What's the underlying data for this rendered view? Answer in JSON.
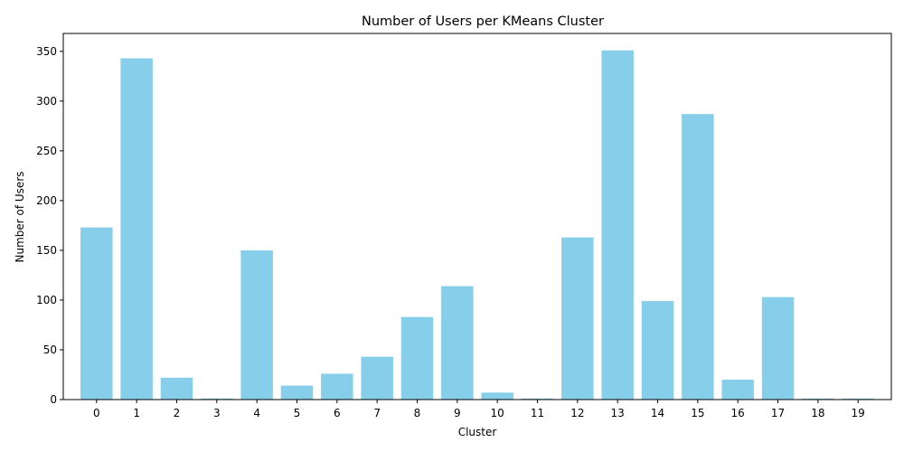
{
  "chart_data": {
    "type": "bar",
    "title": "Number of Users per KMeans Cluster",
    "xlabel": "Cluster",
    "ylabel": "Number of Users",
    "categories": [
      "0",
      "1",
      "2",
      "3",
      "4",
      "5",
      "6",
      "7",
      "8",
      "9",
      "10",
      "11",
      "12",
      "13",
      "14",
      "15",
      "16",
      "17",
      "18",
      "19"
    ],
    "values": [
      173,
      343,
      22,
      1,
      150,
      14,
      26,
      43,
      83,
      114,
      7,
      1,
      163,
      351,
      99,
      287,
      20,
      103,
      1,
      1
    ],
    "ylim": [
      0,
      368
    ],
    "yticks": [
      0,
      50,
      100,
      150,
      200,
      250,
      300,
      350
    ],
    "bar_color": "#87ceeb",
    "grid": false
  }
}
